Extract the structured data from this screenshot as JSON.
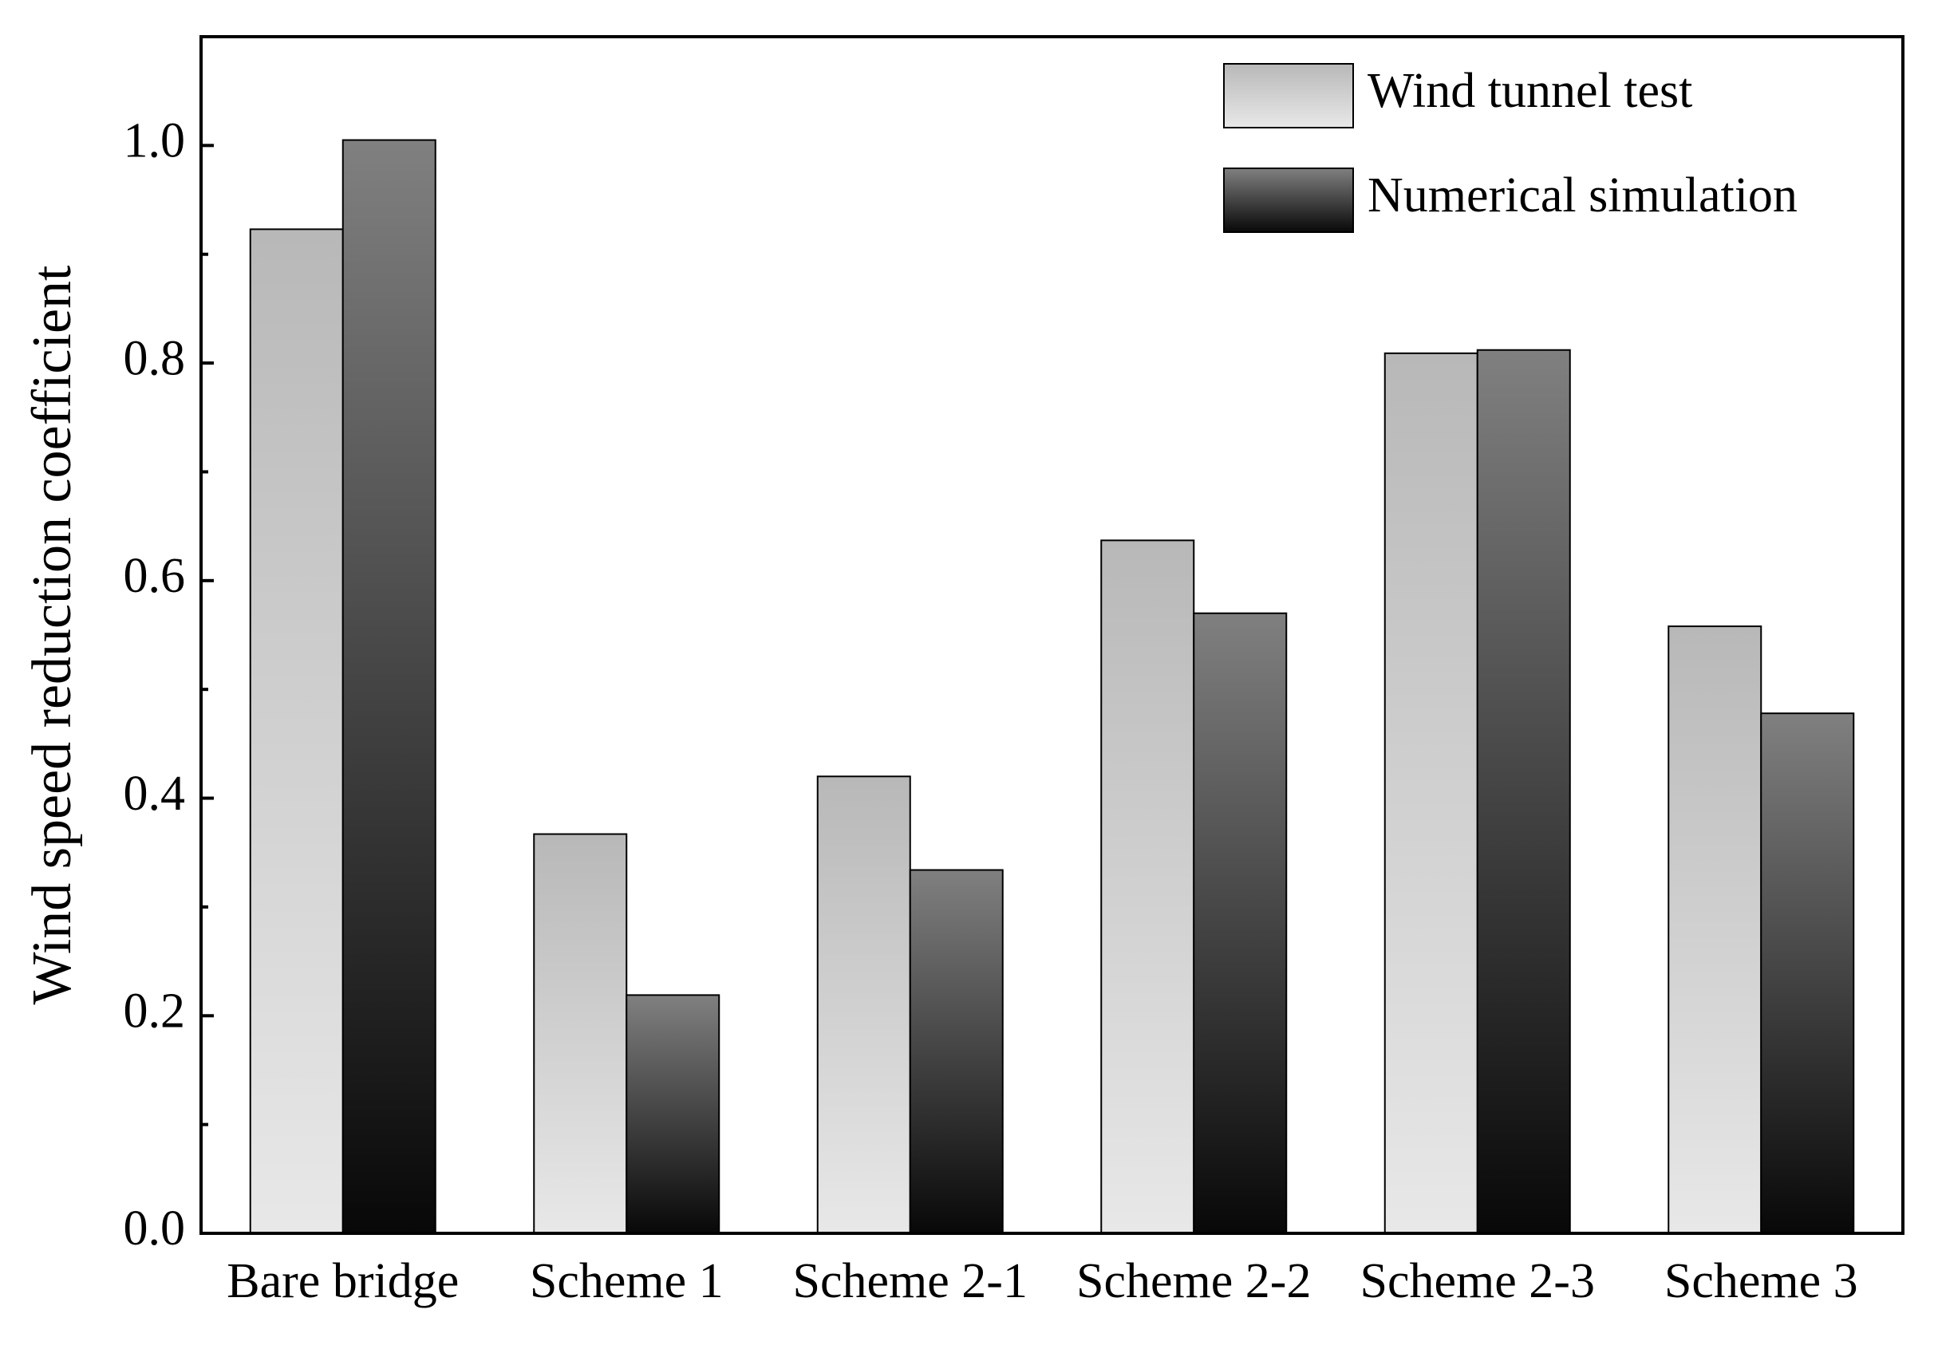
{
  "chart_data": {
    "type": "bar",
    "y_label": "Wind speed reduction coefficient",
    "categories": [
      "Bare bridge",
      "Scheme 1",
      "Scheme 2-1",
      "Scheme 2-2",
      "Scheme 2-3",
      "Scheme 3"
    ],
    "series": [
      {
        "name": "Wind tunnel test",
        "gradient": [
          "#b8b8b8",
          "#e8e8e8"
        ],
        "values": [
          0.923,
          0.367,
          0.42,
          0.637,
          0.809,
          0.558
        ]
      },
      {
        "name": "Numerical simulation",
        "gradient": [
          "#808080",
          "#080808"
        ],
        "values": [
          1.005,
          0.219,
          0.334,
          0.57,
          0.812,
          0.478
        ]
      }
    ],
    "ylim": [
      0,
      1.1
    ],
    "yticks": [
      {
        "value": 0,
        "label": "0.0"
      },
      0.2,
      0.4,
      0.6,
      0.8,
      {
        "value": 1,
        "label": "1.0"
      }
    ],
    "minor_yticks": [
      0.1,
      0.3,
      0.5,
      0.7,
      0.9
    ],
    "legend": "upper right"
  }
}
